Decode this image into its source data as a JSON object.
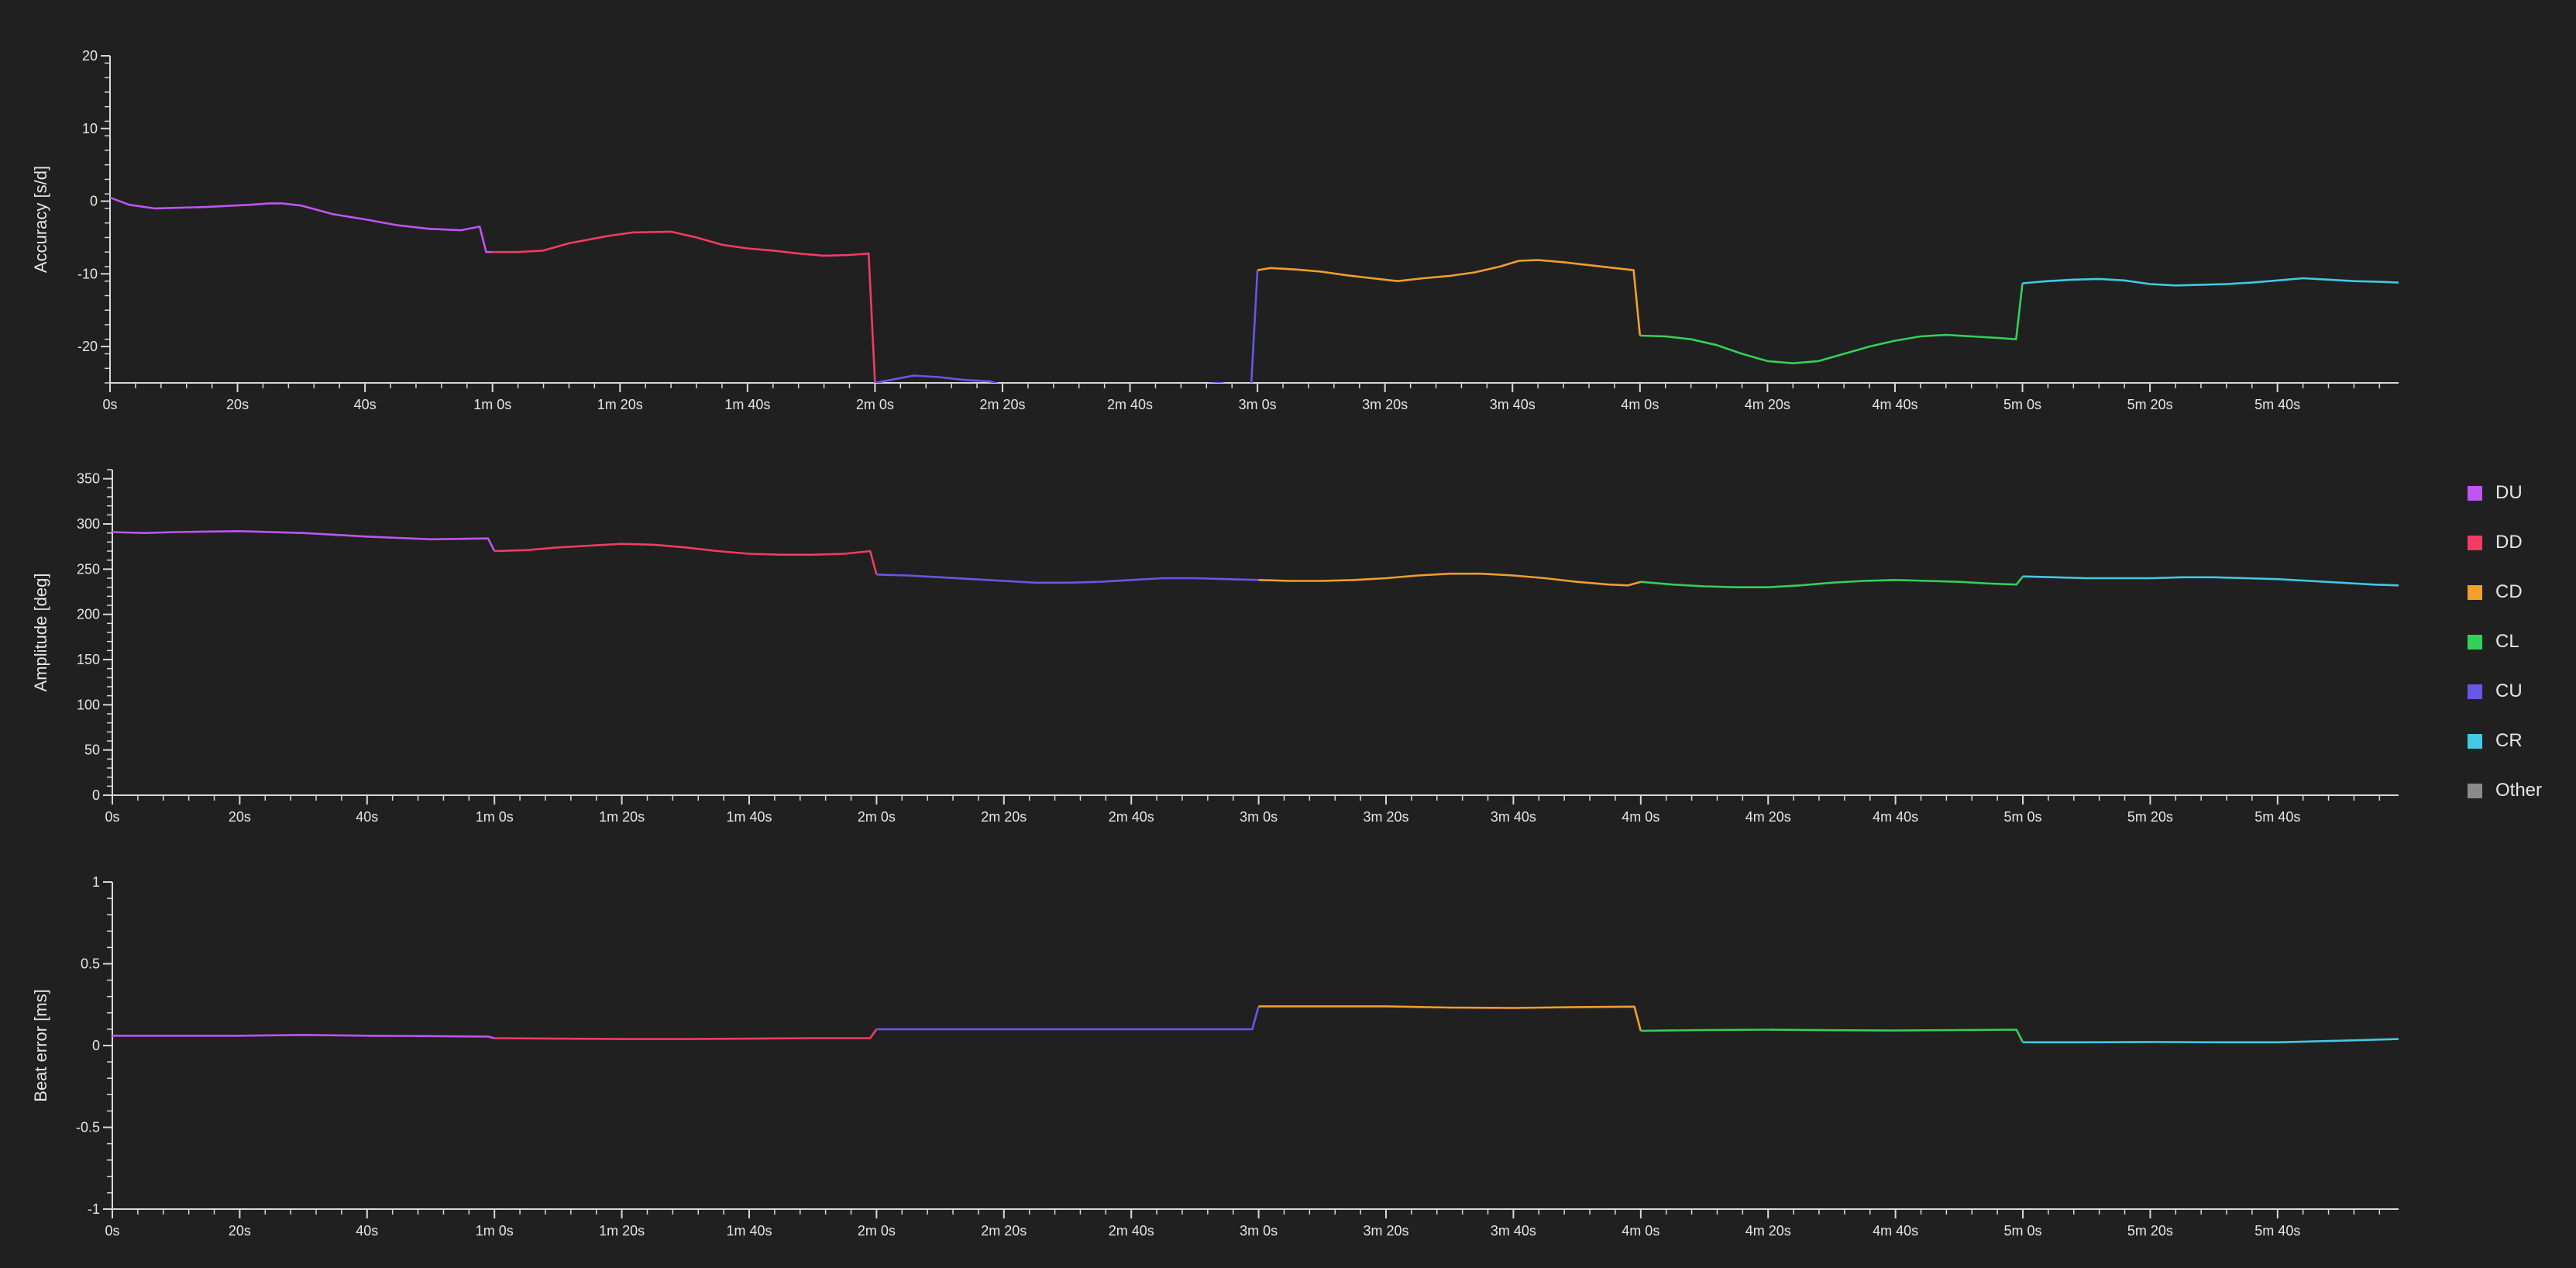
{
  "chart_data": [
    {
      "type": "line",
      "ylabel": "Accuracy [s/d]",
      "ylim": [
        -25,
        20
      ],
      "yticks": [
        -20,
        -10,
        0,
        10,
        20
      ],
      "ytick_labels": [
        "-20",
        "-10",
        "0",
        "10",
        "20"
      ],
      "xlim": [
        0,
        359
      ],
      "xticks": [
        0,
        20,
        40,
        60,
        80,
        100,
        120,
        140,
        160,
        180,
        200,
        220,
        240,
        260,
        280,
        300,
        320,
        340
      ],
      "xtick_labels": [
        "0s",
        "20s",
        "40s",
        "1m 0s",
        "1m 20s",
        "1m 40s",
        "2m 0s",
        "2m 20s",
        "2m 40s",
        "3m 0s",
        "3m 20s",
        "3m 40s",
        "4m 0s",
        "4m 20s",
        "4m 40s",
        "5m 0s",
        "5m 20s",
        "5m 40s"
      ],
      "series": [
        {
          "name": "DU",
          "color": "#bf55f2",
          "x": [
            0,
            3,
            7,
            15,
            22,
            25,
            27,
            30,
            35,
            40,
            45,
            50,
            55,
            58,
            59,
            60
          ],
          "y": [
            0.5,
            -0.5,
            -1.0,
            -0.8,
            -0.5,
            -0.3,
            -0.3,
            -0.6,
            -1.8,
            -2.5,
            -3.3,
            -3.8,
            -4.0,
            -3.5,
            -7.0,
            -7.0
          ]
        },
        {
          "name": "DD",
          "color": "#f23c62",
          "x": [
            60,
            64,
            68,
            72,
            78,
            82,
            88,
            92,
            96,
            100,
            104,
            108,
            112,
            116,
            119,
            120
          ],
          "y": [
            -7.0,
            -7.0,
            -6.8,
            -5.8,
            -4.8,
            -4.3,
            -4.2,
            -5.0,
            -6.0,
            -6.5,
            -6.8,
            -7.2,
            -7.5,
            -7.4,
            -7.2,
            -25.0
          ]
        },
        {
          "name": "CU",
          "color": "#6658e6",
          "x": [
            120,
            123,
            126,
            130,
            134,
            138,
            142,
            146,
            150,
            154,
            158,
            162,
            166,
            170,
            174,
            178,
            179,
            180
          ],
          "y": [
            -25.0,
            -24.5,
            -24.0,
            -24.2,
            -24.6,
            -24.8,
            -25.8,
            -27.0,
            -28.2,
            -28.8,
            -28.3,
            -27.3,
            -26.2,
            -25.3,
            -25.0,
            -25.5,
            -25.5,
            -9.5
          ]
        },
        {
          "name": "CD",
          "color": "#f29f2c",
          "x": [
            180,
            182,
            186,
            190,
            194,
            198,
            202,
            206,
            210,
            214,
            218,
            221,
            224,
            228,
            232,
            236,
            239,
            240
          ],
          "y": [
            -9.5,
            -9.2,
            -9.4,
            -9.7,
            -10.2,
            -10.6,
            -11.0,
            -10.6,
            -10.3,
            -9.8,
            -9.0,
            -8.2,
            -8.1,
            -8.4,
            -8.8,
            -9.2,
            -9.5,
            -18.5
          ]
        },
        {
          "name": "CL",
          "color": "#34d058",
          "x": [
            240,
            244,
            248,
            252,
            256,
            260,
            264,
            268,
            272,
            276,
            280,
            284,
            288,
            292,
            296,
            299,
            300
          ],
          "y": [
            -18.5,
            -18.6,
            -19.0,
            -19.8,
            -21.0,
            -22.0,
            -22.3,
            -22.0,
            -21.0,
            -20.0,
            -19.2,
            -18.6,
            -18.4,
            -18.6,
            -18.8,
            -19.0,
            -11.3
          ]
        },
        {
          "name": "CR",
          "color": "#41c9e6",
          "x": [
            300,
            304,
            308,
            312,
            316,
            320,
            324,
            328,
            332,
            336,
            340,
            344,
            348,
            352,
            356,
            359
          ],
          "y": [
            -11.3,
            -11.0,
            -10.8,
            -10.7,
            -10.9,
            -11.4,
            -11.6,
            -11.5,
            -11.4,
            -11.2,
            -10.9,
            -10.6,
            -10.8,
            -11.0,
            -11.1,
            -11.2
          ]
        }
      ]
    },
    {
      "type": "line",
      "ylabel": "Amplitude [deg]",
      "ylim": [
        0,
        360
      ],
      "yticks": [
        0,
        50,
        100,
        150,
        200,
        250,
        300,
        350
      ],
      "ytick_labels": [
        "0",
        "50",
        "100",
        "150",
        "200",
        "250",
        "300",
        "350"
      ],
      "xlim": [
        0,
        359
      ],
      "xticks": [
        0,
        20,
        40,
        60,
        80,
        100,
        120,
        140,
        160,
        180,
        200,
        220,
        240,
        260,
        280,
        300,
        320,
        340
      ],
      "xtick_labels": [
        "0s",
        "20s",
        "40s",
        "1m 0s",
        "1m 20s",
        "1m 40s",
        "2m 0s",
        "2m 20s",
        "2m 40s",
        "3m 0s",
        "3m 20s",
        "3m 40s",
        "4m 0s",
        "4m 20s",
        "4m 40s",
        "5m 0s",
        "5m 20s",
        "5m 40s"
      ],
      "series": [
        {
          "name": "DU",
          "color": "#bf55f2",
          "x": [
            0,
            5,
            10,
            20,
            30,
            40,
            50,
            59,
            60
          ],
          "y": [
            291,
            290,
            291,
            292,
            290,
            286,
            283,
            284,
            270
          ]
        },
        {
          "name": "DD",
          "color": "#f23c62",
          "x": [
            60,
            65,
            70,
            75,
            80,
            85,
            90,
            95,
            100,
            105,
            110,
            115,
            119,
            120
          ],
          "y": [
            270,
            271,
            274,
            276,
            278,
            277,
            274,
            270,
            267,
            266,
            266,
            267,
            270,
            244
          ]
        },
        {
          "name": "CU",
          "color": "#6658e6",
          "x": [
            120,
            125,
            130,
            135,
            140,
            145,
            150,
            155,
            160,
            165,
            170,
            175,
            180
          ],
          "y": [
            244,
            243,
            241,
            239,
            237,
            235,
            235,
            236,
            238,
            240,
            240,
            239,
            238
          ]
        },
        {
          "name": "CD",
          "color": "#f29f2c",
          "x": [
            180,
            185,
            190,
            195,
            200,
            205,
            210,
            215,
            220,
            225,
            230,
            235,
            238,
            240
          ],
          "y": [
            238,
            237,
            237,
            238,
            240,
            243,
            245,
            245,
            243,
            240,
            236,
            233,
            232,
            236
          ]
        },
        {
          "name": "CL",
          "color": "#34d058",
          "x": [
            240,
            245,
            250,
            255,
            260,
            265,
            270,
            275,
            280,
            285,
            290,
            295,
            299,
            300
          ],
          "y": [
            236,
            233,
            231,
            230,
            230,
            232,
            235,
            237,
            238,
            237,
            236,
            234,
            233,
            242
          ]
        },
        {
          "name": "CR",
          "color": "#41c9e6",
          "x": [
            300,
            305,
            310,
            315,
            320,
            325,
            330,
            335,
            340,
            345,
            350,
            355,
            359
          ],
          "y": [
            242,
            241,
            240,
            240,
            240,
            241,
            241,
            240,
            239,
            237,
            235,
            233,
            232
          ]
        }
      ]
    },
    {
      "type": "line",
      "ylabel": "Beat error [ms]",
      "ylim": [
        -1,
        1
      ],
      "yticks": [
        -1,
        -0.5,
        0,
        0.5,
        1
      ],
      "ytick_labels": [
        "-1",
        "-0.5",
        "0",
        "0.5",
        "1"
      ],
      "xlim": [
        0,
        359
      ],
      "xticks": [
        0,
        20,
        40,
        60,
        80,
        100,
        120,
        140,
        160,
        180,
        200,
        220,
        240,
        260,
        280,
        300,
        320,
        340
      ],
      "xtick_labels": [
        "0s",
        "20s",
        "40s",
        "1m 0s",
        "1m 20s",
        "1m 40s",
        "2m 0s",
        "2m 20s",
        "2m 40s",
        "3m 0s",
        "3m 20s",
        "3m 40s",
        "4m 0s",
        "4m 20s",
        "4m 40s",
        "5m 0s",
        "5m 20s",
        "5m 40s"
      ],
      "series": [
        {
          "name": "DU",
          "color": "#bf55f2",
          "x": [
            0,
            10,
            20,
            30,
            40,
            50,
            59,
            60
          ],
          "y": [
            0.06,
            0.06,
            0.06,
            0.065,
            0.06,
            0.058,
            0.055,
            0.045
          ]
        },
        {
          "name": "DD",
          "color": "#f23c62",
          "x": [
            60,
            70,
            80,
            90,
            100,
            110,
            119,
            120
          ],
          "y": [
            0.045,
            0.042,
            0.04,
            0.04,
            0.042,
            0.045,
            0.045,
            0.1
          ]
        },
        {
          "name": "CU",
          "color": "#6658e6",
          "x": [
            120,
            130,
            140,
            150,
            160,
            170,
            179,
            180
          ],
          "y": [
            0.1,
            0.1,
            0.1,
            0.1,
            0.1,
            0.1,
            0.1,
            0.24
          ]
        },
        {
          "name": "CD",
          "color": "#f29f2c",
          "x": [
            180,
            190,
            200,
            210,
            220,
            230,
            239,
            240
          ],
          "y": [
            0.24,
            0.24,
            0.24,
            0.232,
            0.23,
            0.235,
            0.238,
            0.09
          ]
        },
        {
          "name": "CL",
          "color": "#34d058",
          "x": [
            240,
            250,
            260,
            270,
            280,
            290,
            299,
            300
          ],
          "y": [
            0.09,
            0.095,
            0.097,
            0.094,
            0.092,
            0.095,
            0.097,
            0.02
          ]
        },
        {
          "name": "CR",
          "color": "#41c9e6",
          "x": [
            300,
            310,
            320,
            330,
            340,
            350,
            359
          ],
          "y": [
            0.02,
            0.02,
            0.022,
            0.02,
            0.02,
            0.03,
            0.04
          ]
        }
      ]
    }
  ],
  "legend": {
    "placement": "right",
    "items": [
      {
        "label": "DU",
        "color": "#bf55f2"
      },
      {
        "label": "DD",
        "color": "#f23c62"
      },
      {
        "label": "CD",
        "color": "#f29f2c"
      },
      {
        "label": "CL",
        "color": "#34d058"
      },
      {
        "label": "CU",
        "color": "#6658e6"
      },
      {
        "label": "CR",
        "color": "#41c9e6"
      },
      {
        "label": "Other",
        "color": "#8a8a8a"
      }
    ]
  }
}
